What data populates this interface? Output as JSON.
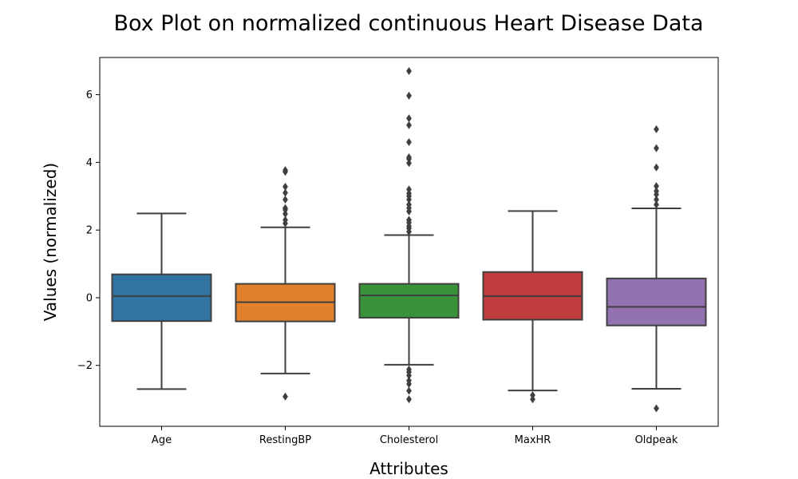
{
  "chart_data": {
    "type": "box",
    "title": "Box Plot on normalized continuous Heart Disease Data",
    "xlabel": "Attributes",
    "ylabel": "Values (normalized)",
    "ylim": [
      -3.8,
      7.1
    ],
    "yticks": [
      -2,
      0,
      2,
      4,
      6
    ],
    "grid": false,
    "categories": [
      "Age",
      "RestingBP",
      "Cholesterol",
      "MaxHR",
      "Oldpeak"
    ],
    "series": [
      {
        "category": "Age",
        "color": "#3274a1",
        "whisker_low": -2.7,
        "q1": -0.69,
        "median": 0.05,
        "q3": 0.69,
        "whisker_high": 2.49,
        "outliers": []
      },
      {
        "category": "RestingBP",
        "color": "#e1812c",
        "whisker_low": -2.24,
        "q1": -0.7,
        "median": -0.13,
        "q3": 0.41,
        "whisker_high": 2.08,
        "outliers": [
          -2.92,
          2.2,
          2.3,
          2.48,
          2.6,
          2.65,
          2.9,
          3.1,
          3.28,
          3.72,
          3.77
        ]
      },
      {
        "category": "Cholesterol",
        "color": "#3a923a",
        "whisker_low": -1.98,
        "q1": -0.59,
        "median": 0.07,
        "q3": 0.41,
        "whisker_high": 1.85,
        "outliers": [
          -3.0,
          -2.75,
          -2.55,
          -2.45,
          -2.3,
          -2.2,
          -2.12,
          1.95,
          2.05,
          2.12,
          2.22,
          2.3,
          2.55,
          2.65,
          2.75,
          2.9,
          3.0,
          3.08,
          3.2,
          3.98,
          4.1,
          4.15,
          4.6,
          5.1,
          5.3,
          5.97,
          6.7
        ]
      },
      {
        "category": "MaxHR",
        "color": "#c03d3e",
        "whisker_low": -2.74,
        "q1": -0.65,
        "median": 0.05,
        "q3": 0.76,
        "whisker_high": 2.56,
        "outliers": [
          -2.88,
          -3.0
        ]
      },
      {
        "category": "Oldpeak",
        "color": "#9372b2",
        "whisker_low": -2.69,
        "q1": -0.82,
        "median": -0.27,
        "q3": 0.57,
        "whisker_high": 2.64,
        "outliers": [
          -3.27,
          2.75,
          2.9,
          3.05,
          3.15,
          3.3,
          3.85,
          4.42,
          4.98
        ]
      }
    ]
  }
}
